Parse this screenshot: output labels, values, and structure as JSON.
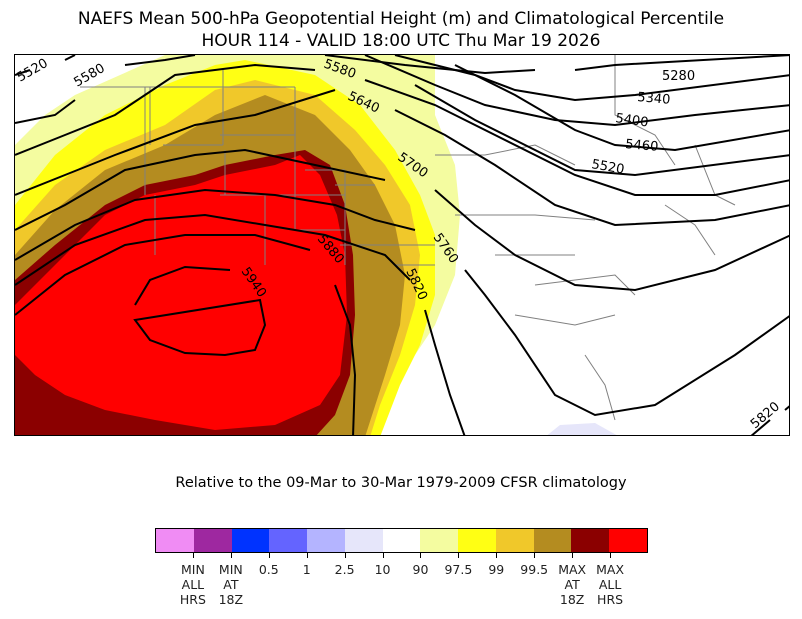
{
  "title": {
    "line1": "NAEFS Mean 500-hPa Geopotential Height (m) and Climatological Percentile",
    "line2": "HOUR 114 - VALID 18:00 UTC Thu Mar 19 2026"
  },
  "subtitle": "Relative to the 09-Mar to 30-Mar 1979-2009 CFSR climatology",
  "colorbar": {
    "colors": [
      "#f08cf4",
      "#9e28a0",
      "#0033ff",
      "#6464ff",
      "#b4b4ff",
      "#e6e6fa",
      "#ffffff",
      "#f4fca0",
      "#ffff14",
      "#f0c82a",
      "#b48c20",
      "#8b0000",
      "#ff0000"
    ],
    "tick_labels": [
      [
        "MIN",
        "ALL",
        "HRS"
      ],
      [
        "MIN",
        "AT",
        "18Z"
      ],
      [
        "0.5"
      ],
      [
        "1"
      ],
      [
        "2.5"
      ],
      [
        "10"
      ],
      [
        "90"
      ],
      [
        "97.5"
      ],
      [
        "99"
      ],
      [
        "99.5"
      ],
      [
        "MAX",
        "AT",
        "18Z"
      ],
      [
        "MAX",
        "ALL",
        "HRS"
      ]
    ]
  },
  "map": {
    "contour_labels": [
      "5520",
      "5580",
      "5580",
      "5640",
      "5700",
      "5760",
      "5820",
      "5880",
      "5940",
      "5280",
      "5340",
      "5400",
      "5460",
      "5520",
      "5820"
    ],
    "contour_color": "#000000",
    "border_color": "#808080"
  }
}
